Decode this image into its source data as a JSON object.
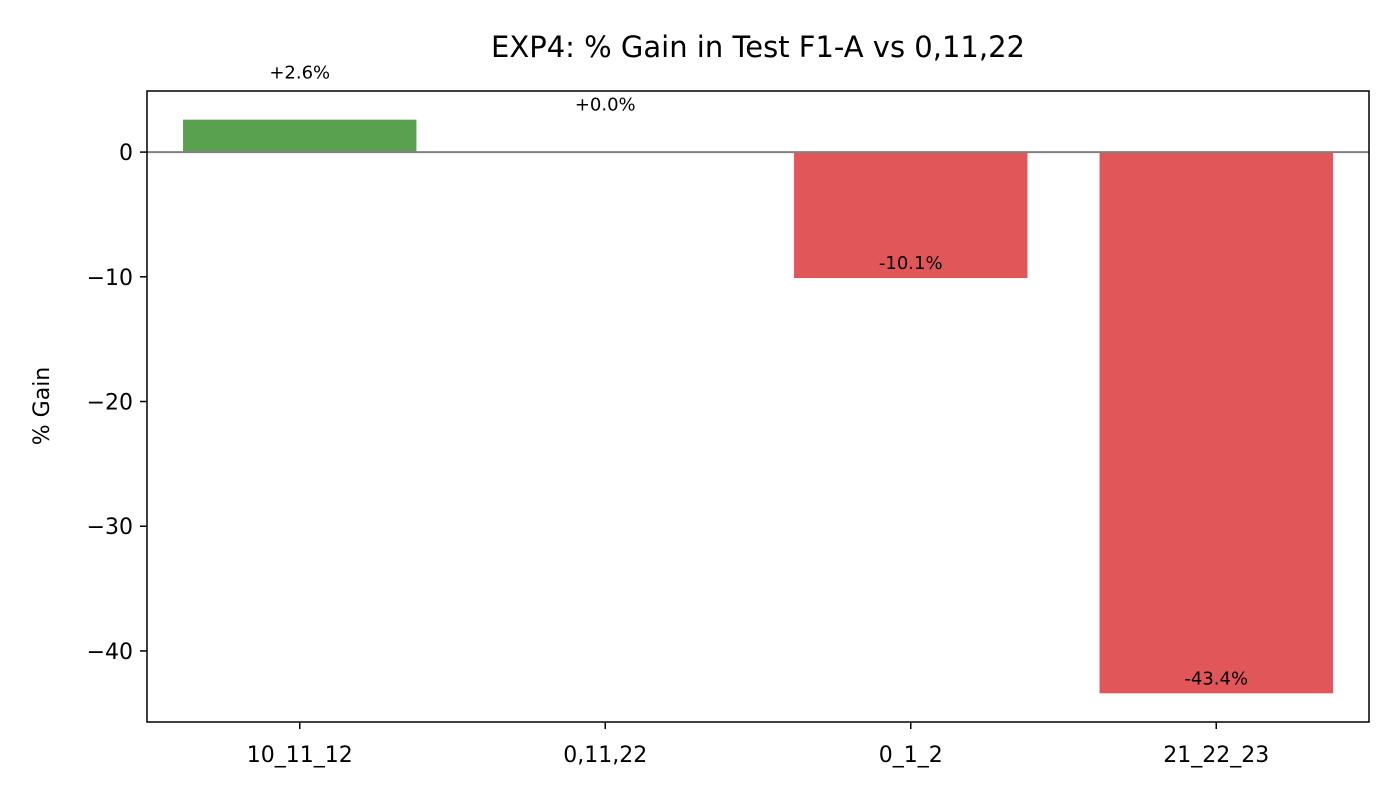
{
  "chart_data": {
    "type": "bar",
    "title": "EXP4: % Gain in Test F1-A vs 0,11,22",
    "xlabel": "",
    "ylabel": "% Gain",
    "categories": [
      "10_11_12",
      "0,11,22",
      "0_1_2",
      "21_22_23"
    ],
    "values": [
      2.6,
      0.0,
      -10.1,
      -43.4
    ],
    "data_labels": [
      "+2.6%",
      "+0.0%",
      "-10.1%",
      "-43.4%"
    ],
    "bar_colors": [
      "#59a14f",
      "#e15759",
      "#e15759",
      "#e15759"
    ],
    "ylim": [
      -45.7,
      4.9
    ],
    "yticks": [
      0,
      -10,
      -20,
      -30,
      -40
    ],
    "ytick_labels": [
      "0",
      "−10",
      "−20",
      "−30",
      "−40"
    ],
    "baseline": 0,
    "baseline_color": "#808080",
    "grid": false,
    "legend": "none"
  }
}
